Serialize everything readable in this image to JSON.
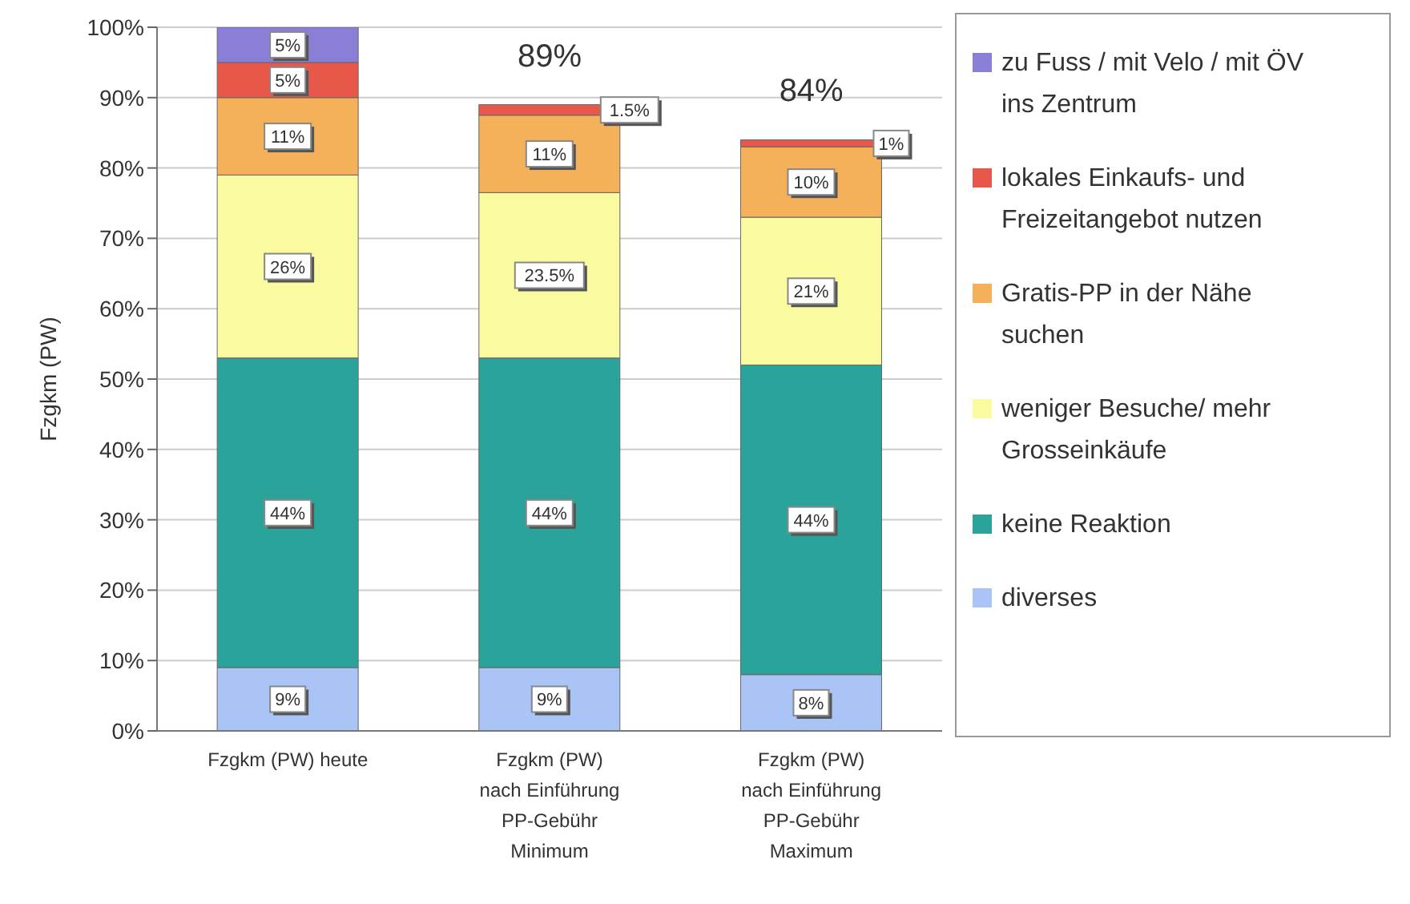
{
  "chart_data": {
    "type": "bar",
    "stacked": true,
    "ylabel": "Fzgkm (PW)",
    "categories": [
      "Fzgkm (PW) heute",
      "Fzgkm (PW)\nnach Einführung\nPP-Gebühr\nMinimum",
      "Fzgkm (PW)\nnach Einführung\nPP-Gebühr\nMaximum"
    ],
    "series": [
      {
        "name": "diverses",
        "color": "#a9c4f5",
        "values": [
          9,
          9,
          8
        ],
        "value_labels": [
          "9%",
          "9%",
          "8%"
        ]
      },
      {
        "name": "keine Reaktion",
        "color": "#2aa39a",
        "values": [
          44,
          44,
          44
        ],
        "value_labels": [
          "44%",
          "44%",
          "44%"
        ]
      },
      {
        "name": "weniger Besuche/ mehr Grosseinkäufe",
        "color": "#fafaa0",
        "values": [
          26,
          23.5,
          21
        ],
        "value_labels": [
          "26%",
          "23.5%",
          "21%"
        ]
      },
      {
        "name": "Gratis-PP in der Nähe suchen",
        "color": "#f5b05a",
        "values": [
          11,
          11,
          10
        ],
        "value_labels": [
          "11%",
          "11%",
          "10%"
        ]
      },
      {
        "name": "lokales Einkaufs- und Freizeitangebot nutzen",
        "color": "#e8584a",
        "values": [
          5,
          1.5,
          1
        ],
        "value_labels": [
          "5%",
          "1.5%",
          "1%"
        ]
      },
      {
        "name": "zu Fuss / mit Velo / mit ÖV ins Zentrum",
        "color": "#8a7fd6",
        "values": [
          5,
          null,
          null
        ],
        "value_labels": [
          "5%",
          null,
          null
        ]
      }
    ],
    "totals": [
      null,
      "89%",
      "84%"
    ],
    "ylim": [
      0,
      100
    ],
    "yticks": [
      {
        "value": 0,
        "label": "0%"
      },
      {
        "value": 10,
        "label": "10%"
      },
      {
        "value": 20,
        "label": "20%"
      },
      {
        "value": 30,
        "label": "30%"
      },
      {
        "value": 40,
        "label": "40%"
      },
      {
        "value": 50,
        "label": "50%"
      },
      {
        "value": 60,
        "label": "60%"
      },
      {
        "value": 70,
        "label": "70%"
      },
      {
        "value": 80,
        "label": "80%"
      },
      {
        "value": 90,
        "label": "90%"
      },
      {
        "value": 100,
        "label": "100%"
      }
    ],
    "grid": "y",
    "legend": "right"
  }
}
